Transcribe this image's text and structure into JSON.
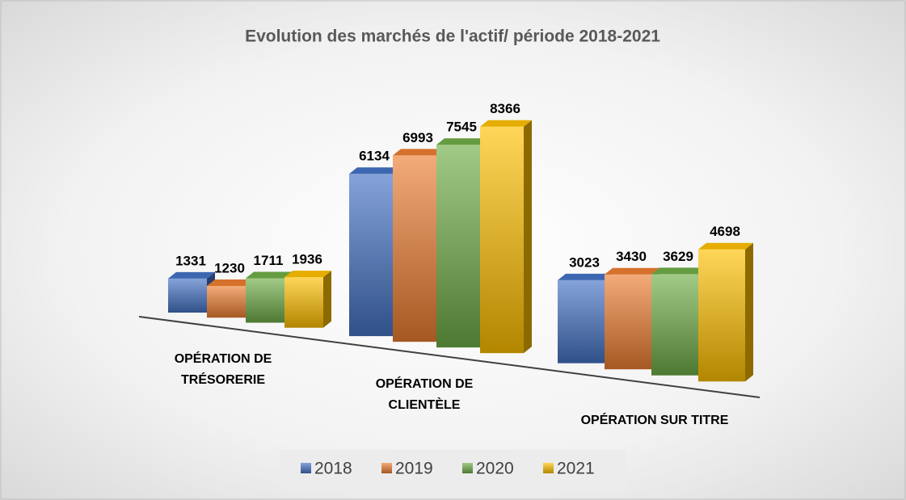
{
  "chart_data": {
    "type": "bar3d",
    "title": "Evolution des marchés de l'actif/ période 2018-2021",
    "categories": [
      "OPÉRATION DE TRÉSORERIE",
      "OPÉRATION DE CLIENTÈLE",
      "OPÉRATION SUR TITRE"
    ],
    "series": [
      {
        "name": "2018",
        "color": "#4472c4",
        "values": [
          1331,
          6134,
          3023
        ]
      },
      {
        "name": "2019",
        "color": "#ed7d31",
        "values": [
          1230,
          6993,
          3430
        ]
      },
      {
        "name": "2020",
        "color": "#70ad47",
        "values": [
          1711,
          7545,
          3629
        ]
      },
      {
        "name": "2021",
        "color": "#ffc000",
        "values": [
          1936,
          8366,
          4698
        ]
      }
    ],
    "legend": "bottom"
  }
}
